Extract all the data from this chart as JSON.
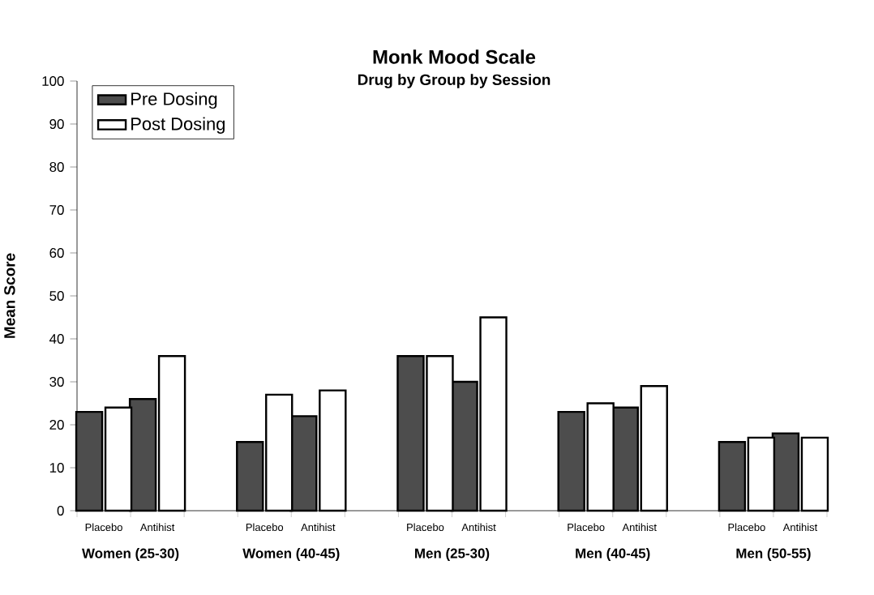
{
  "chart_data": {
    "type": "bar",
    "title": "Monk Mood Scale",
    "subtitle": "Drug by Group by Session",
    "ylabel": "Mean Score",
    "categories": [
      "Placebo",
      "Antihist",
      null,
      "Placebo",
      "Antihist",
      null,
      "Placebo",
      "Antihist",
      null,
      "Placebo",
      "Antihist",
      null,
      "Placebo",
      "Antihist"
    ],
    "series": [
      {
        "name": "Pre Dosing",
        "color": "#4d4d4d",
        "values": [
          23,
          26,
          null,
          16,
          22,
          null,
          36,
          30,
          null,
          23,
          24,
          null,
          16,
          18
        ]
      },
      {
        "name": "Post Dosing",
        "color": "#ffffff",
        "values": [
          24,
          36,
          null,
          27,
          28,
          null,
          36,
          45,
          null,
          25,
          29,
          null,
          17,
          17
        ]
      }
    ],
    "annotations": [
      "Women (25-30)",
      "Women (40-45)",
      "Men (25-30)",
      "Men (40-45)",
      "Men (50-55)"
    ],
    "ylim": [
      0,
      100
    ],
    "yticks": [
      0,
      10,
      20,
      30,
      40,
      50,
      60,
      70,
      80,
      90,
      100
    ],
    "grid": false,
    "legend": "top left"
  }
}
